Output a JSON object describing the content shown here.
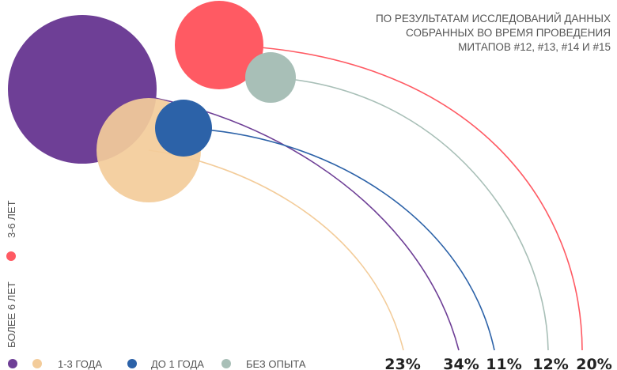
{
  "subtitle_lines": [
    "ПО РЕЗУЛЬТАТАМ ИССЛЕДОВАНИЙ ДАННЫХ",
    "СОБРАННЫХ ВО ВРЕМЯ ПРОВЕДЕНИЯ",
    "МИТАПОВ #12, #13, #14 И #15"
  ],
  "chart_data": {
    "type": "bubble-arc",
    "categories": [
      "Более 6 лет",
      "1-3 года",
      "До 1 года",
      "Без опыта",
      "3-6 лет"
    ],
    "series": [
      {
        "name": "БОЛЕЕ 6 ЛЕТ",
        "value": 34,
        "label": "34%",
        "color": "#6e3f96"
      },
      {
        "name": "1-3 ГОДА",
        "value": 23,
        "label": "23%",
        "color": "#f3cc9a"
      },
      {
        "name": "ДО 1 ГОДА",
        "value": 11,
        "label": "11%",
        "color": "#2c62a8"
      },
      {
        "name": "БЕЗ ОПЫТА",
        "value": 12,
        "label": "12%",
        "color": "#a8bfb7"
      },
      {
        "name": "3-6 ЛЕТ",
        "value": 20,
        "label": "20%",
        "color": "#ff5a63"
      }
    ],
    "unit": "%"
  }
}
